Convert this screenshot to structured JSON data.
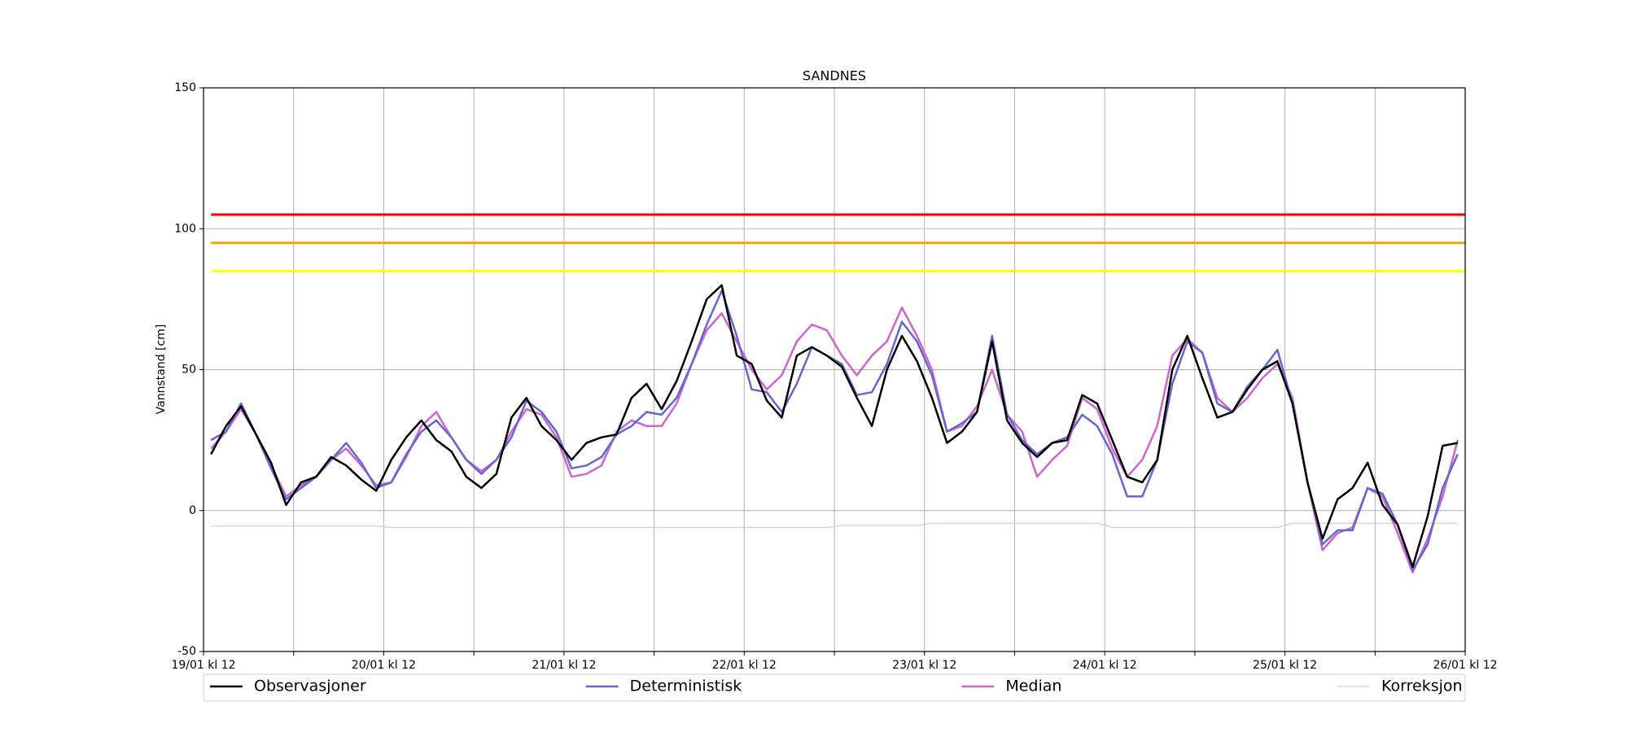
{
  "chart_data": {
    "type": "line",
    "title": "SANDNES",
    "y_label": "Vannstand [cm]",
    "x": [
      "19/01 kl 13",
      "19/01 kl 15",
      "19/01 kl 17",
      "19/01 kl 19",
      "19/01 kl 21",
      "19/01 kl 23",
      "20/01 kl 01",
      "20/01 kl 03",
      "20/01 kl 05",
      "20/01 kl 07",
      "20/01 kl 09",
      "20/01 kl 11",
      "20/01 kl 13",
      "20/01 kl 15",
      "20/01 kl 17",
      "20/01 kl 19",
      "20/01 kl 21",
      "20/01 kl 23",
      "21/01 kl 01",
      "21/01 kl 03",
      "21/01 kl 05",
      "21/01 kl 07",
      "21/01 kl 09",
      "21/01 kl 11",
      "21/01 kl 13",
      "21/01 kl 15",
      "21/01 kl 17",
      "21/01 kl 19",
      "21/01 kl 21",
      "21/01 kl 23",
      "22/01 kl 01",
      "22/01 kl 03",
      "22/01 kl 05",
      "22/01 kl 07",
      "22/01 kl 09",
      "22/01 kl 11",
      "22/01 kl 13",
      "22/01 kl 15",
      "22/01 kl 17",
      "22/01 kl 19",
      "22/01 kl 21",
      "22/01 kl 23",
      "23/01 kl 01",
      "23/01 kl 03",
      "23/01 kl 05",
      "23/01 kl 07",
      "23/01 kl 09",
      "23/01 kl 11",
      "23/01 kl 13",
      "23/01 kl 15",
      "23/01 kl 17",
      "23/01 kl 19",
      "23/01 kl 21",
      "23/01 kl 23",
      "24/01 kl 01",
      "24/01 kl 03",
      "24/01 kl 05",
      "24/01 kl 07",
      "24/01 kl 09",
      "24/01 kl 11",
      "24/01 kl 13",
      "24/01 kl 15",
      "24/01 kl 17",
      "24/01 kl 19",
      "24/01 kl 21",
      "24/01 kl 23",
      "25/01 kl 01",
      "25/01 kl 03",
      "25/01 kl 05",
      "25/01 kl 07",
      "25/01 kl 09",
      "25/01 kl 11",
      "25/01 kl 13",
      "25/01 kl 15",
      "25/01 kl 17",
      "25/01 kl 19",
      "25/01 kl 21",
      "25/01 kl 23",
      "26/01 kl 01",
      "26/01 kl 03",
      "26/01 kl 05",
      "26/01 kl 07",
      "26/01 kl 09",
      "26/01 kl 11"
    ],
    "series": [
      {
        "name": "Observasjoner",
        "color": "#000000",
        "values": [
          20,
          30,
          37,
          27,
          17,
          2,
          10,
          12,
          19,
          16,
          11,
          7,
          18,
          26,
          32,
          25,
          21,
          12,
          8,
          13,
          33,
          40,
          30,
          25,
          18,
          24,
          26,
          27,
          40,
          45,
          36,
          46,
          60,
          75,
          80,
          55,
          52,
          39,
          33,
          55,
          58,
          55,
          51,
          40,
          30,
          50,
          62,
          53,
          40,
          24,
          28,
          35,
          60,
          32,
          24,
          19,
          24,
          25,
          41,
          38,
          25,
          12,
          10,
          18,
          50,
          62,
          47,
          33,
          35,
          43,
          50,
          53,
          38,
          10,
          -10,
          4,
          8,
          17,
          2,
          -5,
          -20,
          -2,
          23,
          24
        ]
      },
      {
        "name": "Deterministisk",
        "color": "#6666cc",
        "values": [
          25,
          28,
          38,
          27,
          15,
          4,
          8,
          12,
          18,
          24,
          17,
          8,
          10,
          20,
          28,
          32,
          26,
          18,
          13,
          18,
          26,
          39,
          35,
          28,
          15,
          16,
          19,
          27,
          30,
          35,
          34,
          40,
          52,
          66,
          78,
          62,
          43,
          42,
          35,
          45,
          58,
          55,
          52,
          41,
          42,
          52,
          67,
          60,
          48,
          28,
          31,
          35,
          62,
          34,
          25,
          20,
          24,
          26,
          34,
          30,
          20,
          5,
          5,
          18,
          45,
          60,
          56,
          38,
          35,
          44,
          50,
          57,
          38,
          10,
          -12,
          -7,
          -7,
          8,
          6,
          -5,
          -21,
          -12,
          8,
          20
        ]
      },
      {
        "name": "Median",
        "color": "#cc66cc",
        "values": [
          22,
          28,
          36,
          27,
          16,
          5,
          9,
          12,
          18,
          22,
          16,
          9,
          10,
          19,
          30,
          35,
          26,
          18,
          14,
          18,
          28,
          36,
          34,
          26,
          12,
          13,
          16,
          28,
          32,
          30,
          30,
          38,
          52,
          64,
          70,
          60,
          50,
          43,
          48,
          60,
          66,
          64,
          55,
          48,
          55,
          60,
          72,
          62,
          50,
          28,
          30,
          37,
          50,
          34,
          28,
          12,
          18,
          23,
          40,
          36,
          22,
          12,
          18,
          30,
          55,
          61,
          56,
          40,
          35,
          40,
          47,
          52,
          40,
          10,
          -14,
          -8,
          -6,
          8,
          5,
          -8,
          -22,
          -10,
          5,
          25
        ]
      },
      {
        "name": "Korreksjon",
        "color": "#f0c0c8",
        "values": [
          -5.5,
          -5.5,
          -5.5,
          -5.5,
          -5.5,
          -5.5,
          -5.5,
          -5.5,
          -5.5,
          -5.5,
          -5.5,
          -5.5,
          -6,
          -6,
          -6,
          -6,
          -6,
          -6,
          -6,
          -6,
          -6,
          -6,
          -6,
          -6,
          -6,
          -6,
          -6,
          -6,
          -6,
          -6,
          -6,
          -6,
          -6,
          -6,
          -6,
          -6,
          -6,
          -6,
          -6,
          -6,
          -6,
          -6,
          -5.3,
          -5.3,
          -5.3,
          -5.3,
          -5.3,
          -5.3,
          -4.5,
          -4.5,
          -4.5,
          -4.5,
          -4.5,
          -4.5,
          -4.5,
          -4.5,
          -4.5,
          -4.5,
          -4.5,
          -4.5,
          -6,
          -6,
          -6,
          -6,
          -6,
          -6,
          -6,
          -6,
          -6,
          -6,
          -6,
          -6,
          -4.5,
          -4.5,
          -4.5,
          -4.5,
          -4.5,
          -4.5,
          -4.5,
          -4.5,
          -4.5,
          -4.5,
          -4.5,
          -4.5
        ]
      }
    ],
    "thresholds": [
      {
        "value": 105,
        "color": "#ff0000"
      },
      {
        "value": 100,
        "color": "#e8c4c4"
      },
      {
        "value": 95,
        "color": "#ffa500"
      },
      {
        "value": 85,
        "color": "#ffff00"
      }
    ],
    "xticks": [
      "19/01 kl 12",
      "20/01 kl 12",
      "21/01 kl 12",
      "22/01 kl 12",
      "23/01 kl 12",
      "24/01 kl 12",
      "25/01 kl 12",
      "26/01 kl 12"
    ],
    "minor_xticks": true,
    "ylim": [
      -50,
      150
    ],
    "yticks": [
      -50,
      0,
      50,
      100,
      150
    ],
    "grid": true,
    "legend": "bottom"
  }
}
